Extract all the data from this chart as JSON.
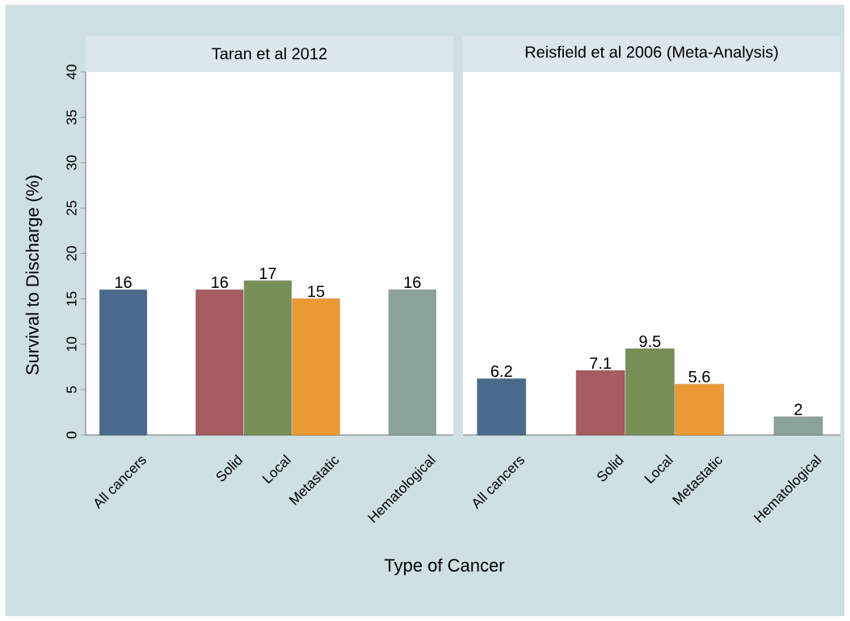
{
  "chart_data": [
    {
      "type": "bar",
      "title": "Taran et al 2012",
      "xlabel": "Type of Cancer",
      "ylabel": "Survival to Discharge (%)",
      "categories": [
        "All cancers",
        null,
        "Solid",
        "Local",
        "Metastatic",
        null,
        "Hematological"
      ],
      "values": [
        16,
        null,
        16,
        17,
        15,
        null,
        16
      ],
      "colors": [
        "#4a6a8c",
        null,
        "#a55b60",
        "#768f55",
        "#eb9a35",
        null,
        "#8ba39a"
      ],
      "ylim": [
        0,
        40
      ],
      "yticks": [
        0,
        5,
        10,
        15,
        20,
        25,
        30,
        35,
        40
      ],
      "data_labels": true
    },
    {
      "type": "bar",
      "title": "Reisfield et al 2006 (Meta-Analysis)",
      "categories": [
        "All cancers",
        null,
        "Solid",
        "Local",
        "Metastatic",
        null,
        "Hematological"
      ],
      "values": [
        6.2,
        null,
        7.1,
        9.5,
        5.6,
        null,
        2
      ],
      "colors": [
        "#4a6a8c",
        null,
        "#a55b60",
        "#768f55",
        "#eb9a35",
        null,
        "#8ba39a"
      ],
      "ylim": [
        0,
        40
      ],
      "tick_labels": "x",
      "data_labels": true
    }
  ]
}
